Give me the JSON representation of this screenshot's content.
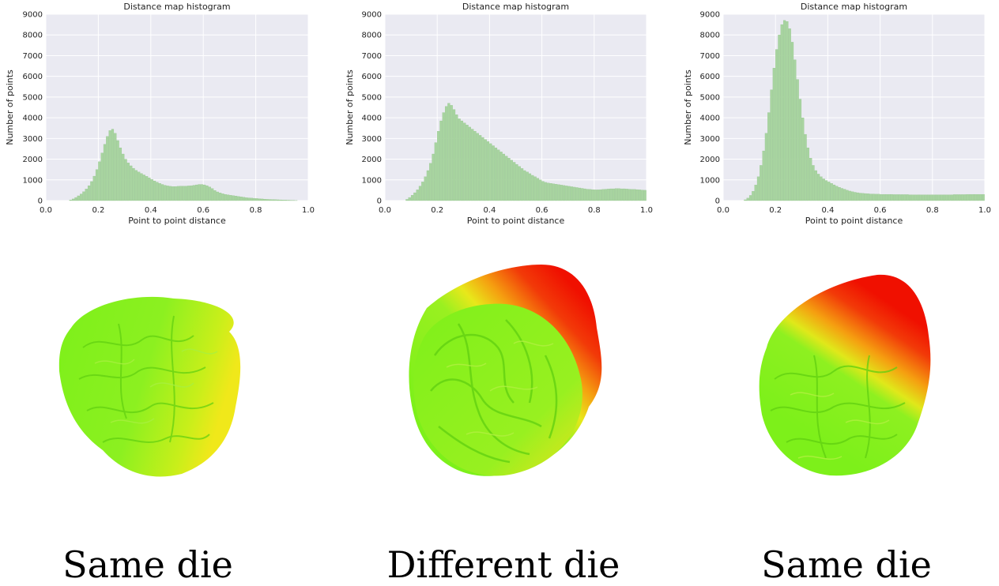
{
  "colors": {
    "plot_background": "#eaeaf2",
    "bar": "#a8d4a0",
    "bar_edge": "#8fc287",
    "grid": "#ffffff"
  },
  "chart_data": [
    {
      "type": "bar",
      "title": "Distance map histogram",
      "xlabel": "Point to point distance",
      "ylabel": "Number of points",
      "xlim": [
        0.0,
        1.0
      ],
      "ylim": [
        0,
        9000
      ],
      "xticks": [
        "0.0",
        "0.2",
        "0.4",
        "0.6",
        "0.8",
        "1.0"
      ],
      "yticks": [
        "0",
        "1000",
        "2000",
        "3000",
        "4000",
        "5000",
        "6000",
        "7000",
        "8000",
        "9000"
      ],
      "grid": true,
      "bin_width": 0.01,
      "series": [
        {
          "x": [
            0.09,
            0.1,
            0.11,
            0.12,
            0.13,
            0.14,
            0.15,
            0.16,
            0.17,
            0.18,
            0.19,
            0.2,
            0.21,
            0.22,
            0.23,
            0.24,
            0.25,
            0.26,
            0.27,
            0.28,
            0.29,
            0.3,
            0.31,
            0.32,
            0.33,
            0.34,
            0.35,
            0.36,
            0.37,
            0.38,
            0.39,
            0.4,
            0.41,
            0.42,
            0.43,
            0.44,
            0.45,
            0.46,
            0.47,
            0.48,
            0.49,
            0.5,
            0.51,
            0.52,
            0.53,
            0.54,
            0.55,
            0.56,
            0.57,
            0.58,
            0.59,
            0.6,
            0.61,
            0.62,
            0.63,
            0.64,
            0.65,
            0.66,
            0.67,
            0.68,
            0.69,
            0.7,
            0.71,
            0.72,
            0.73,
            0.74,
            0.75,
            0.76,
            0.77,
            0.78,
            0.79,
            0.8,
            0.81,
            0.82,
            0.83,
            0.84,
            0.85,
            0.86,
            0.87,
            0.88,
            0.89,
            0.9,
            0.91,
            0.92,
            0.93,
            0.94,
            0.95
          ],
          "values": [
            30,
            80,
            150,
            230,
            320,
            430,
            560,
            720,
            920,
            1180,
            1500,
            1880,
            2300,
            2720,
            3100,
            3380,
            3450,
            3250,
            2900,
            2550,
            2250,
            2000,
            1820,
            1680,
            1560,
            1460,
            1380,
            1310,
            1240,
            1170,
            1100,
            1020,
            950,
            890,
            830,
            780,
            740,
            710,
            690,
            680,
            680,
            690,
            700,
            700,
            700,
            710,
            720,
            740,
            760,
            780,
            780,
            760,
            720,
            660,
            580,
            490,
            420,
            370,
            330,
            300,
            280,
            260,
            240,
            220,
            200,
            180,
            160,
            140,
            130,
            120,
            110,
            100,
            90,
            80,
            70,
            60,
            55,
            50,
            45,
            40,
            35,
            30,
            25,
            20,
            15,
            10,
            5
          ]
        }
      ]
    },
    {
      "type": "bar",
      "title": "Distance map histogram",
      "xlabel": "Point to point distance",
      "ylabel": "Number of points",
      "xlim": [
        0.0,
        1.0
      ],
      "ylim": [
        0,
        9000
      ],
      "xticks": [
        "0.0",
        "0.2",
        "0.4",
        "0.6",
        "0.8",
        "1.0"
      ],
      "yticks": [
        "0",
        "1000",
        "2000",
        "3000",
        "4000",
        "5000",
        "6000",
        "7000",
        "8000",
        "9000"
      ],
      "grid": true,
      "bin_width": 0.01,
      "series": [
        {
          "x": [
            0.08,
            0.09,
            0.1,
            0.11,
            0.12,
            0.13,
            0.14,
            0.15,
            0.16,
            0.17,
            0.18,
            0.19,
            0.2,
            0.21,
            0.22,
            0.23,
            0.24,
            0.25,
            0.26,
            0.27,
            0.28,
            0.29,
            0.3,
            0.31,
            0.32,
            0.33,
            0.34,
            0.35,
            0.36,
            0.37,
            0.38,
            0.39,
            0.4,
            0.41,
            0.42,
            0.43,
            0.44,
            0.45,
            0.46,
            0.47,
            0.48,
            0.49,
            0.5,
            0.51,
            0.52,
            0.53,
            0.54,
            0.55,
            0.56,
            0.57,
            0.58,
            0.59,
            0.6,
            0.61,
            0.62,
            0.63,
            0.64,
            0.65,
            0.66,
            0.67,
            0.68,
            0.69,
            0.7,
            0.71,
            0.72,
            0.73,
            0.74,
            0.75,
            0.76,
            0.77,
            0.78,
            0.79,
            0.8,
            0.81,
            0.82,
            0.83,
            0.84,
            0.85,
            0.86,
            0.87,
            0.88,
            0.89,
            0.9,
            0.91,
            0.92,
            0.93,
            0.94,
            0.95,
            0.96,
            0.97,
            0.98,
            0.99
          ],
          "values": [
            60,
            150,
            260,
            380,
            520,
            700,
            900,
            1150,
            1450,
            1800,
            2250,
            2800,
            3350,
            3850,
            4250,
            4550,
            4700,
            4600,
            4400,
            4150,
            3950,
            3850,
            3750,
            3650,
            3550,
            3450,
            3350,
            3250,
            3150,
            3050,
            2950,
            2850,
            2750,
            2650,
            2550,
            2450,
            2350,
            2250,
            2150,
            2050,
            1950,
            1850,
            1750,
            1650,
            1550,
            1450,
            1380,
            1300,
            1220,
            1150,
            1080,
            1000,
            930,
            880,
            850,
            830,
            810,
            790,
            770,
            750,
            730,
            710,
            690,
            670,
            650,
            630,
            610,
            590,
            570,
            550,
            540,
            530,
            520,
            520,
            530,
            540,
            550,
            560,
            570,
            570,
            580,
            580,
            570,
            570,
            560,
            550,
            540,
            540,
            530,
            520,
            510,
            500
          ]
        }
      ]
    },
    {
      "type": "bar",
      "title": "Distance map histogram",
      "xlabel": "Point to point distance",
      "ylabel": "Number of points",
      "xlim": [
        0.0,
        1.0
      ],
      "ylim": [
        0,
        9000
      ],
      "xticks": [
        "0.0",
        "0.2",
        "0.4",
        "0.6",
        "0.8",
        "1.0"
      ],
      "yticks": [
        "0",
        "1000",
        "2000",
        "3000",
        "4000",
        "5000",
        "6000",
        "7000",
        "8000",
        "9000"
      ],
      "grid": true,
      "bin_width": 0.01,
      "series": [
        {
          "x": [
            0.08,
            0.09,
            0.1,
            0.11,
            0.12,
            0.13,
            0.14,
            0.15,
            0.16,
            0.17,
            0.18,
            0.19,
            0.2,
            0.21,
            0.22,
            0.23,
            0.24,
            0.25,
            0.26,
            0.27,
            0.28,
            0.29,
            0.3,
            0.31,
            0.32,
            0.33,
            0.34,
            0.35,
            0.36,
            0.37,
            0.38,
            0.39,
            0.4,
            0.41,
            0.42,
            0.43,
            0.44,
            0.45,
            0.46,
            0.47,
            0.48,
            0.49,
            0.5,
            0.51,
            0.52,
            0.53,
            0.54,
            0.55,
            0.56,
            0.57,
            0.58,
            0.59,
            0.6,
            0.61,
            0.62,
            0.63,
            0.64,
            0.65,
            0.66,
            0.67,
            0.68,
            0.69,
            0.7,
            0.71,
            0.72,
            0.73,
            0.74,
            0.75,
            0.76,
            0.77,
            0.78,
            0.79,
            0.8,
            0.81,
            0.82,
            0.83,
            0.84,
            0.85,
            0.86,
            0.87,
            0.88,
            0.89,
            0.9,
            0.91,
            0.92,
            0.93,
            0.94,
            0.95,
            0.96,
            0.97,
            0.98,
            0.99
          ],
          "values": [
            40,
            120,
            250,
            450,
            750,
            1150,
            1700,
            2400,
            3250,
            4250,
            5350,
            6400,
            7300,
            8000,
            8500,
            8700,
            8650,
            8300,
            7650,
            6800,
            5850,
            4900,
            4000,
            3200,
            2550,
            2050,
            1700,
            1450,
            1280,
            1150,
            1050,
            970,
            900,
            830,
            760,
            700,
            640,
            590,
            550,
            500,
            460,
            430,
            400,
            380,
            360,
            350,
            340,
            330,
            320,
            320,
            310,
            310,
            300,
            300,
            300,
            300,
            300,
            290,
            290,
            290,
            290,
            290,
            290,
            280,
            280,
            280,
            280,
            280,
            280,
            280,
            280,
            280,
            280,
            280,
            280,
            280,
            280,
            280,
            280,
            280,
            290,
            290,
            290,
            290,
            290,
            300,
            300,
            300,
            300,
            300,
            300,
            300
          ]
        }
      ]
    }
  ],
  "captions": [
    "Same die",
    "Different die",
    "Same die"
  ]
}
